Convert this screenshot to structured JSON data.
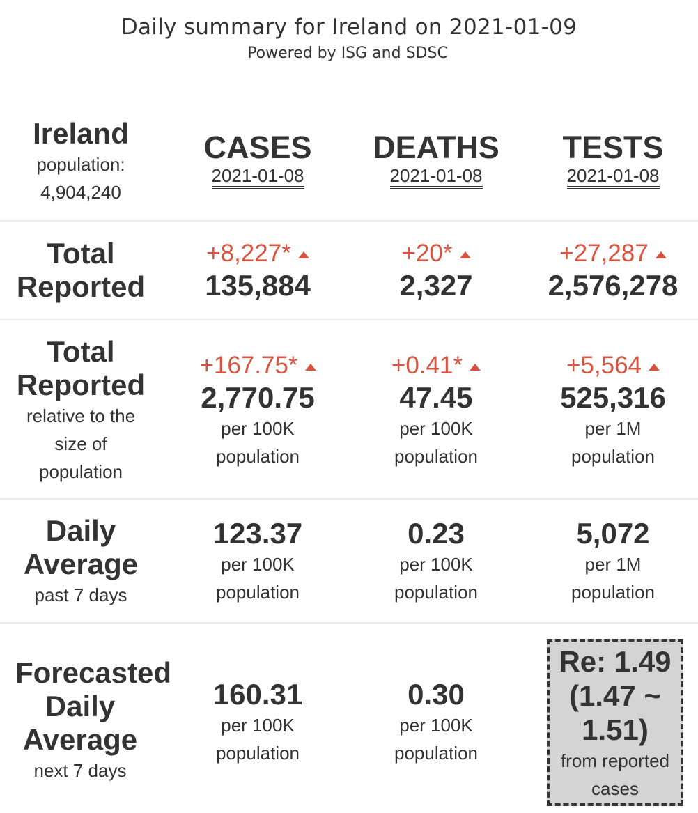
{
  "header": {
    "title": "Daily summary for Ireland on 2021-01-09",
    "subtitle": "Powered by ISG and SDSC"
  },
  "country": {
    "name": "Ireland",
    "population_label": "population:",
    "population_value": "4,904,240"
  },
  "columns": [
    {
      "name": "CASES",
      "date": "2021-01-08"
    },
    {
      "name": "DEATHS",
      "date": "2021-01-08"
    },
    {
      "name": "TESTS",
      "date": "2021-01-08"
    }
  ],
  "rows": {
    "total_reported": {
      "label_line1": "Total",
      "label_line2": "Reported",
      "cases": {
        "delta": "+8,227*",
        "value": "135,884"
      },
      "deaths": {
        "delta": "+20*",
        "value": "2,327"
      },
      "tests": {
        "delta": "+27,287",
        "value": "2,576,278"
      }
    },
    "relative": {
      "label_line1": "Total",
      "label_line2": "Reported",
      "sub1": "relative to the",
      "sub2": "size of",
      "sub3": "population",
      "cases": {
        "delta": "+167.75*",
        "value": "2,770.75",
        "unit1": "per 100K",
        "unit2": "population"
      },
      "deaths": {
        "delta": "+0.41*",
        "value": "47.45",
        "unit1": "per 100K",
        "unit2": "population"
      },
      "tests": {
        "delta": "+5,564",
        "value": "525,316",
        "unit1": "per 1M",
        "unit2": "population"
      }
    },
    "daily_average": {
      "label_line1": "Daily",
      "label_line2": "Average",
      "sub1": "past 7 days",
      "cases": {
        "value": "123.37",
        "unit1": "per 100K",
        "unit2": "population"
      },
      "deaths": {
        "value": "0.23",
        "unit1": "per 100K",
        "unit2": "population"
      },
      "tests": {
        "value": "5,072",
        "unit1": "per 1M",
        "unit2": "population"
      }
    },
    "forecast": {
      "label_line1": "Forecasted",
      "label_line2": "Daily",
      "label_line3": "Average",
      "sub1": "next 7 days",
      "cases": {
        "value": "160.31",
        "unit1": "per 100K",
        "unit2": "population"
      },
      "deaths": {
        "value": "0.30",
        "unit1": "per 100K",
        "unit2": "population"
      },
      "re": {
        "line1": "Re: 1.49",
        "line2": "(1.47 ~",
        "line3": "1.51)",
        "sub1": "from reported",
        "sub2": "cases"
      }
    }
  },
  "colors": {
    "delta": "#d9533e",
    "text": "#333333",
    "re_box_bg": "#d4d4d4",
    "divider": "#ececec"
  },
  "icons": {
    "delta_arrow": "triangle-up-icon"
  }
}
